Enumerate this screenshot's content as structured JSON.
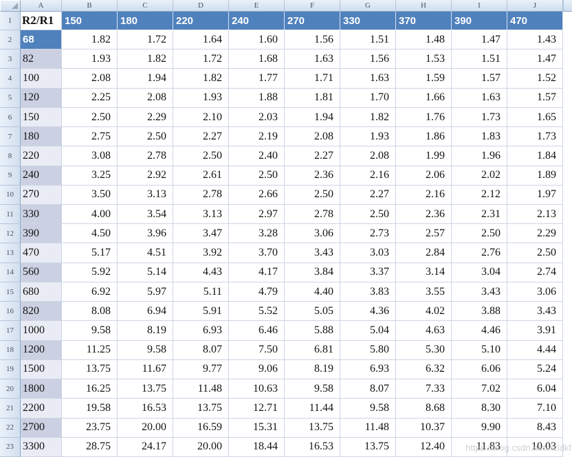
{
  "colors": {
    "header_fill": "#4f81bd",
    "label_dark": "#cbd1e2",
    "label_light": "#e9ecf4",
    "gridline": "#ccd5e3",
    "panel_border": "#9eb6ce"
  },
  "sheet": {
    "column_letters": [
      "A",
      "B",
      "C",
      "D",
      "E",
      "F",
      "G",
      "H",
      "I",
      "J"
    ],
    "header_row": {
      "row_number": "1",
      "label": "R2/R1",
      "values": [
        "150",
        "180",
        "220",
        "240",
        "270",
        "330",
        "370",
        "390",
        "470"
      ]
    },
    "data_rows": [
      {
        "row_number": "2",
        "label": "68",
        "shade": "blue",
        "values": [
          "1.82",
          "1.72",
          "1.64",
          "1.60",
          "1.56",
          "1.51",
          "1.48",
          "1.47",
          "1.43"
        ]
      },
      {
        "row_number": "3",
        "label": "82",
        "shade": "dark",
        "values": [
          "1.93",
          "1.82",
          "1.72",
          "1.68",
          "1.63",
          "1.56",
          "1.53",
          "1.51",
          "1.47"
        ]
      },
      {
        "row_number": "4",
        "label": "100",
        "shade": "light",
        "values": [
          "2.08",
          "1.94",
          "1.82",
          "1.77",
          "1.71",
          "1.63",
          "1.59",
          "1.57",
          "1.52"
        ]
      },
      {
        "row_number": "5",
        "label": "120",
        "shade": "dark",
        "values": [
          "2.25",
          "2.08",
          "1.93",
          "1.88",
          "1.81",
          "1.70",
          "1.66",
          "1.63",
          "1.57"
        ]
      },
      {
        "row_number": "6",
        "label": "150",
        "shade": "light",
        "values": [
          "2.50",
          "2.29",
          "2.10",
          "2.03",
          "1.94",
          "1.82",
          "1.76",
          "1.73",
          "1.65"
        ]
      },
      {
        "row_number": "7",
        "label": "180",
        "shade": "dark",
        "values": [
          "2.75",
          "2.50",
          "2.27",
          "2.19",
          "2.08",
          "1.93",
          "1.86",
          "1.83",
          "1.73"
        ]
      },
      {
        "row_number": "8",
        "label": "220",
        "shade": "light",
        "values": [
          "3.08",
          "2.78",
          "2.50",
          "2.40",
          "2.27",
          "2.08",
          "1.99",
          "1.96",
          "1.84"
        ]
      },
      {
        "row_number": "9",
        "label": "240",
        "shade": "dark",
        "values": [
          "3.25",
          "2.92",
          "2.61",
          "2.50",
          "2.36",
          "2.16",
          "2.06",
          "2.02",
          "1.89"
        ]
      },
      {
        "row_number": "10",
        "label": "270",
        "shade": "light",
        "values": [
          "3.50",
          "3.13",
          "2.78",
          "2.66",
          "2.50",
          "2.27",
          "2.16",
          "2.12",
          "1.97"
        ]
      },
      {
        "row_number": "11",
        "label": "330",
        "shade": "dark",
        "values": [
          "4.00",
          "3.54",
          "3.13",
          "2.97",
          "2.78",
          "2.50",
          "2.36",
          "2.31",
          "2.13"
        ]
      },
      {
        "row_number": "12",
        "label": "390",
        "shade": "dark",
        "values": [
          "4.50",
          "3.96",
          "3.47",
          "3.28",
          "3.06",
          "2.73",
          "2.57",
          "2.50",
          "2.29"
        ]
      },
      {
        "row_number": "13",
        "label": "470",
        "shade": "light",
        "values": [
          "5.17",
          "4.51",
          "3.92",
          "3.70",
          "3.43",
          "3.03",
          "2.84",
          "2.76",
          "2.50"
        ]
      },
      {
        "row_number": "14",
        "label": "560",
        "shade": "dark",
        "values": [
          "5.92",
          "5.14",
          "4.43",
          "4.17",
          "3.84",
          "3.37",
          "3.14",
          "3.04",
          "2.74"
        ]
      },
      {
        "row_number": "15",
        "label": "680",
        "shade": "light",
        "values": [
          "6.92",
          "5.97",
          "5.11",
          "4.79",
          "4.40",
          "3.83",
          "3.55",
          "3.43",
          "3.06"
        ]
      },
      {
        "row_number": "16",
        "label": "820",
        "shade": "dark",
        "values": [
          "8.08",
          "6.94",
          "5.91",
          "5.52",
          "5.05",
          "4.36",
          "4.02",
          "3.88",
          "3.43"
        ]
      },
      {
        "row_number": "17",
        "label": "1000",
        "shade": "light",
        "values": [
          "9.58",
          "8.19",
          "6.93",
          "6.46",
          "5.88",
          "5.04",
          "4.63",
          "4.46",
          "3.91"
        ]
      },
      {
        "row_number": "18",
        "label": "1200",
        "shade": "dark",
        "values": [
          "11.25",
          "9.58",
          "8.07",
          "7.50",
          "6.81",
          "5.80",
          "5.30",
          "5.10",
          "4.44"
        ]
      },
      {
        "row_number": "19",
        "label": "1500",
        "shade": "light",
        "values": [
          "13.75",
          "11.67",
          "9.77",
          "9.06",
          "8.19",
          "6.93",
          "6.32",
          "6.06",
          "5.24"
        ]
      },
      {
        "row_number": "20",
        "label": "1800",
        "shade": "dark",
        "values": [
          "16.25",
          "13.75",
          "11.48",
          "10.63",
          "9.58",
          "8.07",
          "7.33",
          "7.02",
          "6.04"
        ]
      },
      {
        "row_number": "21",
        "label": "2200",
        "shade": "light",
        "values": [
          "19.58",
          "16.53",
          "13.75",
          "12.71",
          "11.44",
          "9.58",
          "8.68",
          "8.30",
          "7.10"
        ]
      },
      {
        "row_number": "22",
        "label": "2700",
        "shade": "dark",
        "values": [
          "23.75",
          "20.00",
          "16.59",
          "15.31",
          "13.75",
          "11.48",
          "10.37",
          "9.90",
          "8.43"
        ]
      },
      {
        "row_number": "23",
        "label": "3300",
        "shade": "light",
        "values": [
          "28.75",
          "24.17",
          "20.00",
          "18.44",
          "16.53",
          "13.75",
          "12.40",
          "11.83",
          "10.03"
        ]
      }
    ],
    "watermark": "https://blog.csdn.net/hzldkf"
  }
}
